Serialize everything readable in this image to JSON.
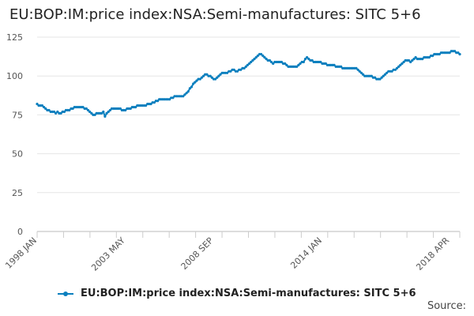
{
  "chart_data": {
    "type": "line",
    "title": "EU:BOP:IM:price index:NSA:Semi-manufactures: SITC 5+6",
    "xlabel": "",
    "ylabel": "",
    "ylim": [
      0,
      125
    ],
    "y_ticks": [
      0,
      25,
      50,
      75,
      100,
      125
    ],
    "x_tick_labels": [
      "1998 JAN",
      "2003 MAY",
      "2008 SEP",
      "2014 JAN",
      "2018 APR"
    ],
    "x_tick_label_index": [
      0,
      52,
      104,
      168,
      243
    ],
    "grid": "horizontal",
    "legend_position": "bottom",
    "series": [
      {
        "name": "EU:BOP:IM:price index:NSA:Semi-manufactures: SITC 5+6",
        "color": "#0a7fbe",
        "x_range": [
          "1998 JAN",
          "2018 APR"
        ],
        "values": [
          82,
          81,
          81,
          81,
          80,
          79,
          78,
          78,
          77,
          77,
          77,
          76,
          77,
          76,
          76,
          77,
          77,
          78,
          78,
          78,
          79,
          79,
          80,
          80,
          80,
          80,
          80,
          80,
          79,
          79,
          78,
          77,
          76,
          75,
          75,
          76,
          76,
          76,
          76,
          77,
          74,
          76,
          77,
          78,
          79,
          79,
          79,
          79,
          79,
          79,
          78,
          78,
          78,
          79,
          79,
          79,
          80,
          80,
          80,
          81,
          81,
          81,
          81,
          81,
          81,
          82,
          82,
          82,
          83,
          83,
          84,
          84,
          85,
          85,
          85,
          85,
          85,
          85,
          85,
          86,
          86,
          87,
          87,
          87,
          87,
          87,
          87,
          88,
          89,
          90,
          92,
          93,
          95,
          96,
          97,
          98,
          98,
          99,
          100,
          101,
          101,
          100,
          100,
          99,
          98,
          98,
          99,
          100,
          101,
          102,
          102,
          102,
          102,
          103,
          103,
          104,
          104,
          103,
          103,
          104,
          104,
          105,
          105,
          106,
          107,
          108,
          109,
          110,
          111,
          112,
          113,
          114,
          114,
          113,
          112,
          111,
          110,
          110,
          109,
          108,
          109,
          109,
          109,
          109,
          109,
          108,
          108,
          107,
          106,
          106,
          106,
          106,
          106,
          106,
          107,
          108,
          109,
          109,
          111,
          112,
          111,
          110,
          110,
          109,
          109,
          109,
          109,
          109,
          108,
          108,
          108,
          107,
          107,
          107,
          107,
          107,
          106,
          106,
          106,
          106,
          105,
          105,
          105,
          105,
          105,
          105,
          105,
          105,
          105,
          104,
          103,
          102,
          101,
          100,
          100,
          100,
          100,
          100,
          99,
          99,
          98,
          98,
          98,
          99,
          100,
          101,
          102,
          103,
          103,
          103,
          104,
          104,
          105,
          106,
          107,
          108,
          109,
          110,
          110,
          110,
          109,
          110,
          111,
          112,
          111,
          111,
          111,
          111,
          112,
          112,
          112,
          112,
          113,
          113,
          114,
          114,
          114,
          114,
          115,
          115,
          115,
          115,
          115,
          115,
          116,
          116,
          116,
          115,
          115,
          114
        ]
      }
    ]
  },
  "legend": {
    "label": "EU:BOP:IM:price index:NSA:Semi-manufactures: SITC 5+6"
  },
  "footer": {
    "source_label": "Source:"
  }
}
